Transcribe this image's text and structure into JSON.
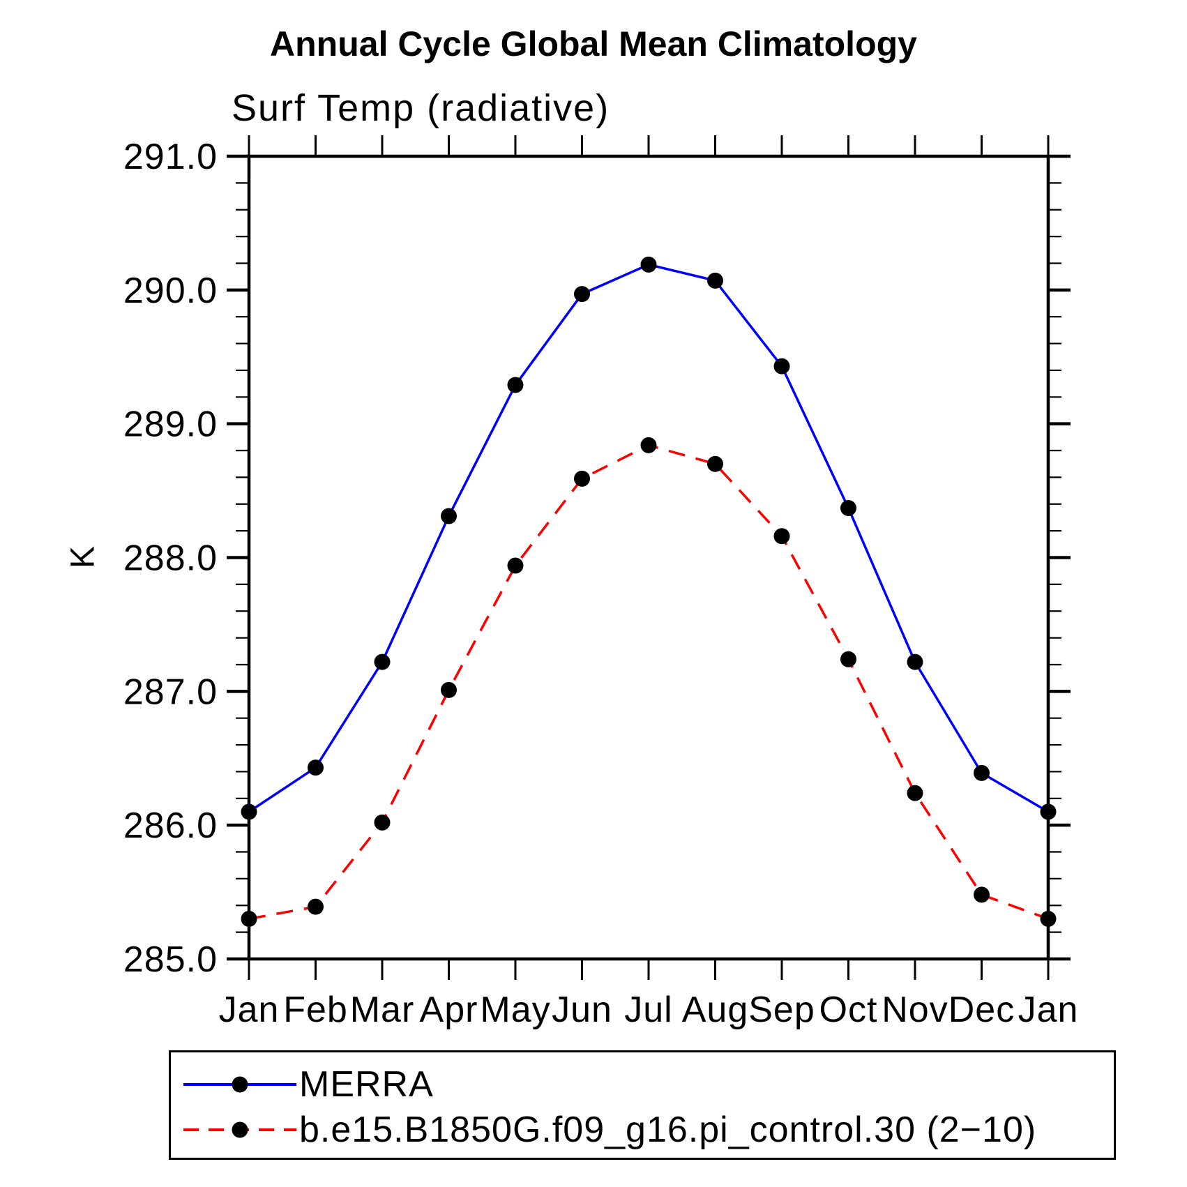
{
  "chart_data": {
    "type": "line",
    "title": "Annual Cycle Global Mean Climatology",
    "subtitle": "Surf Temp (radiative)",
    "xlabel": "",
    "ylabel": "K",
    "categories": [
      "Jan",
      "Feb",
      "Mar",
      "Apr",
      "May",
      "Jun",
      "Jul",
      "Aug",
      "Sep",
      "Oct",
      "Nov",
      "Dec",
      "Jan"
    ],
    "ylim": [
      285.0,
      291.0
    ],
    "ytick_major": 1.0,
    "ytick_minor": 0.2,
    "ytick_label_format": "one_decimal",
    "grid": false,
    "legend_position": "bottom",
    "axis_color": "#000000",
    "marker_shape": "filled-circle",
    "series": [
      {
        "name": "MERRA",
        "color": "#0000ff",
        "line_style": "solid",
        "marker_color": "#000000",
        "values": [
          286.1,
          286.43,
          287.22,
          288.31,
          289.29,
          289.97,
          290.19,
          290.07,
          289.43,
          288.37,
          287.22,
          286.39,
          286.1
        ]
      },
      {
        "name": "b.e15.B1850G.f09_g16.pi_control.30 (2−10)",
        "color": "#ff0000",
        "line_style": "dashed",
        "marker_color": "#000000",
        "values": [
          285.3,
          285.39,
          286.02,
          287.01,
          287.94,
          288.59,
          288.84,
          288.7,
          288.16,
          287.24,
          286.24,
          285.48,
          285.3
        ]
      }
    ]
  }
}
